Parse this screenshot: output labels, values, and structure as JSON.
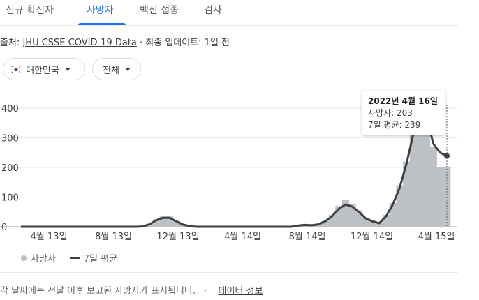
{
  "tabs": [
    {
      "label": "신규 확진자"
    },
    {
      "label": "사망자"
    },
    {
      "label": "백신 접종"
    },
    {
      "label": "검사"
    }
  ],
  "source": {
    "prefix": "출처:",
    "link": "JHU CSSE COVID-19 Data",
    "suffix": " · 최종 업데이트: 1일 전"
  },
  "filters": {
    "country": "대한민국",
    "range": "전체"
  },
  "tooltip": {
    "date": "2022년 4월 16일",
    "deaths": "사망자: 203",
    "avg": "7일 평균: 239"
  },
  "legend": {
    "deaths": "사망자",
    "avg": "7일 평균"
  },
  "footer": {
    "text": "각 날짜에는 전날 이후 보고된 사망자가 표시됩니다.",
    "sep": "·",
    "link": "데이터 정보"
  },
  "colors": {
    "accent": "#1a73e8",
    "bars": "#bdc1c6",
    "avg_line": "#3c4043"
  },
  "chart_data": {
    "type": "area",
    "y_ticks": [
      0,
      100,
      200,
      300,
      400
    ],
    "ylim": [
      0,
      400
    ],
    "x_ticks": [
      "4월 13일",
      "8월 13일",
      "12월 13일",
      "4월 14일",
      "8월 14일",
      "12월 14일",
      "4월 15일"
    ],
    "series": [
      {
        "name": "사망자",
        "values": [
          0,
          0,
          0,
          0,
          0,
          0,
          0,
          0,
          0,
          0,
          0,
          0,
          0,
          0,
          0,
          0,
          0,
          0,
          2,
          10,
          25,
          35,
          35,
          20,
          8,
          3,
          0,
          0,
          0,
          0,
          0,
          0,
          0,
          0,
          0,
          0,
          0,
          0,
          0,
          0,
          0,
          5,
          8,
          6,
          10,
          20,
          40,
          70,
          90,
          75,
          55,
          30,
          20,
          15,
          40,
          80,
          140,
          220,
          330,
          390,
          380,
          270,
          200,
          203
        ]
      },
      {
        "name": "7일 평균",
        "values": [
          0,
          0,
          0,
          0,
          0,
          0,
          0,
          0,
          0,
          0,
          0,
          0,
          0,
          0,
          0,
          0,
          0,
          0,
          1,
          8,
          22,
          30,
          30,
          18,
          7,
          2,
          0,
          0,
          0,
          0,
          0,
          0,
          0,
          0,
          0,
          0,
          0,
          0,
          0,
          0,
          0,
          4,
          6,
          5,
          8,
          18,
          35,
          60,
          75,
          68,
          50,
          28,
          18,
          12,
          35,
          75,
          130,
          210,
          310,
          380,
          370,
          280,
          250,
          239
        ]
      }
    ]
  }
}
